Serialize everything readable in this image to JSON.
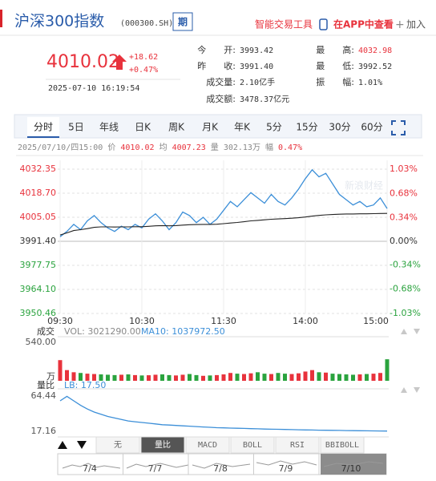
{
  "header": {
    "title": "沪深300指数",
    "code": "(000300.SH)",
    "futures_button": "期",
    "tools": "智能交易工具",
    "app": "在APP中查看",
    "add": "加入"
  },
  "quote": {
    "price": "4010.02",
    "change": "+18.62",
    "change_pct": "+0.47%",
    "time": "2025-07-10 16:19:54",
    "stats": [
      {
        "label": "今　　开:",
        "value": "3993.42"
      },
      {
        "label": "昨　　收:",
        "value": "3991.40"
      },
      {
        "label": "成交量:",
        "value": "2.10亿手"
      },
      {
        "label": "成交额:",
        "value": "3478.37亿元"
      },
      {
        "label": "最　　高:",
        "value": "4032.98"
      },
      {
        "label": "最　　低:",
        "value": "3992.52"
      },
      {
        "label": "振　　幅:",
        "value": "1.01%"
      }
    ]
  },
  "tabs": [
    "分时",
    "5日",
    "年线",
    "日K",
    "周K",
    "月K",
    "年K",
    "5分",
    "15分",
    "30分",
    "60分"
  ],
  "info_line": {
    "date": "2025/07/10/四15:00",
    "price_label": "价",
    "price": "4010.02",
    "avg_label": "均",
    "avg": "4007.23",
    "vol_label": "量",
    "vol": "302.13万",
    "amp_label": "幅",
    "amp": "0.47%"
  },
  "watermark": "新浪财经",
  "chart_data": [
    {
      "type": "line",
      "categories": [
        "09:30",
        null,
        null,
        null,
        null,
        null,
        null,
        null,
        null,
        null,
        null,
        null,
        "10:30",
        null,
        null,
        null,
        null,
        null,
        null,
        null,
        null,
        null,
        null,
        null,
        "11:30",
        null,
        null,
        null,
        null,
        null,
        null,
        null,
        null,
        null,
        null,
        null,
        "14:00",
        null,
        null,
        null,
        null,
        null,
        null,
        null,
        null,
        null,
        null,
        null,
        "15:00"
      ],
      "series": [
        {
          "color": "#3c8fd8",
          "values": [
            3994,
            3997,
            4001,
            3998,
            4003,
            4006,
            4002,
            3999,
            3997,
            4000,
            3998,
            4001,
            3999,
            4004,
            4007,
            4003,
            3998,
            4002,
            4008,
            4006,
            4002,
            4005,
            4001,
            4004,
            4009,
            4014,
            4011,
            4015,
            4019,
            4016,
            4013,
            4018,
            4014,
            4012,
            4016,
            4021,
            4027,
            4032,
            4028,
            4030,
            4024,
            4018,
            4015,
            4012,
            4014,
            4011,
            4012,
            4016,
            4010.02
          ]
        },
        {
          "color": "#222222",
          "values": [
            3995.0,
            3996.2,
            3997.5,
            3998.0,
            3998.6,
            3999.3,
            3999.6,
            3999.6,
            3999.5,
            3999.6,
            3999.6,
            3999.7,
            3999.7,
            3999.9,
            4000.2,
            4000.3,
            4000.2,
            4000.3,
            4000.6,
            4000.8,
            4000.9,
            4001.0,
            4001.0,
            4001.1,
            4001.4,
            4001.8,
            4002.1,
            4002.5,
            4003.0,
            4003.3,
            4003.6,
            4003.9,
            4004.1,
            4004.3,
            4004.5,
            4004.8,
            4005.2,
            4005.7,
            4006.1,
            4006.4,
            4006.6,
            4006.8,
            4006.9,
            4006.9,
            4007.0,
            4007.0,
            4007.1,
            4007.2,
            4007.23
          ]
        }
      ],
      "ylim": [
        3950.46,
        4032.35
      ],
      "yticks": [
        4032.35,
        {
          "value": 4018.7,
          "label": "4018.70"
        },
        4005.05,
        {
          "value": 3991.4,
          "label": "3991.40"
        },
        3977.75,
        {
          "value": 3964.1,
          "label": "3964.10"
        },
        3950.46
      ],
      "y2lim": [
        -1.03,
        1.03
      ],
      "y2ticks": [
        {
          "value": 1.03,
          "label": "1.03%"
        },
        {
          "value": 0.68,
          "label": "0.68%"
        },
        {
          "value": 0.34,
          "label": "0.34%"
        },
        {
          "value": 0,
          "label": "0.00%"
        },
        {
          "value": -0.34,
          "label": "-0.34%"
        },
        {
          "value": -0.68,
          "label": "-0.68%"
        },
        {
          "value": -1.03,
          "label": "-1.03%"
        }
      ],
      "grid": true,
      "up_color": "#e8323c",
      "down_color": "#2aa33e"
    },
    {
      "type": "bar",
      "label": "成交",
      "annotations": [
        "VOL: 3021290.00",
        "MA10: 1037972.50"
      ],
      "unit": "万",
      "values": [
        290,
        150,
        120,
        110,
        100,
        95,
        90,
        85,
        80,
        85,
        90,
        80,
        75,
        78,
        85,
        90,
        80,
        75,
        85,
        95,
        80,
        70,
        75,
        80,
        90,
        110,
        100,
        95,
        105,
        120,
        100,
        95,
        110,
        100,
        95,
        105,
        130,
        150,
        120,
        115,
        100,
        95,
        90,
        85,
        90,
        95,
        100,
        110,
        302.13
      ],
      "ylim": [
        0,
        540
      ],
      "yticks": [
        {
          "value": 540,
          "label": "540.00"
        }
      ],
      "up_color": "#e8323c",
      "down_color": "#2aa33e"
    },
    {
      "type": "line",
      "label": "量比",
      "annotations": [
        "LB: 17.50"
      ],
      "series": [
        {
          "color": "#3c8fd8",
          "values": [
            58,
            64,
            58,
            52,
            47,
            43,
            40,
            37,
            35,
            33,
            31,
            30,
            29,
            28,
            27,
            26,
            25.5,
            25,
            24.5,
            24,
            23.5,
            23,
            22.5,
            22,
            21.8,
            21.5,
            21.2,
            21,
            20.7,
            20.5,
            20.2,
            20,
            19.8,
            19.6,
            19.4,
            19.2,
            19,
            18.9,
            18.7,
            18.6,
            18.4,
            18.3,
            18.1,
            18,
            17.9,
            17.8,
            17.7,
            17.6,
            17.5
          ]
        }
      ],
      "ylim": [
        17.16,
        64.44
      ],
      "yticks": [
        64.44,
        17.16
      ]
    }
  ],
  "indicators": [
    "无",
    "量比",
    "MACD",
    "BOLL",
    "RSI",
    "BBIBOLL"
  ],
  "navigator": [
    "7/4",
    "7/7",
    "7/8",
    "7/9",
    "7/10"
  ]
}
